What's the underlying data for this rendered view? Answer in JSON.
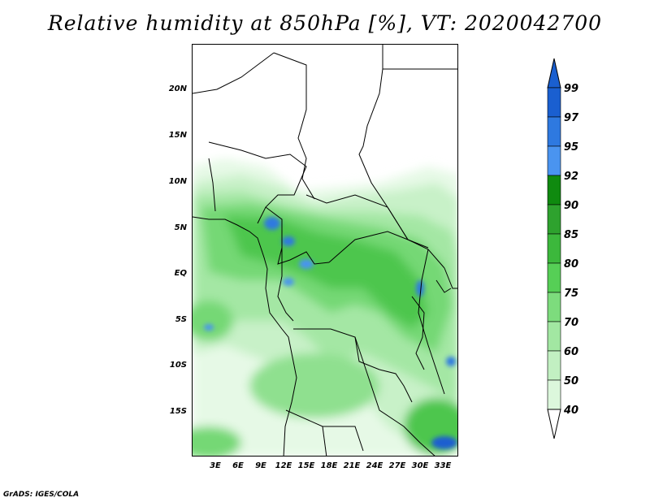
{
  "title": "Relative humidity at 850hPa [%], VT: 2020042700",
  "credit": "GrADS: IGES/COLA",
  "map": {
    "variable": "Relative humidity at 850hPa",
    "units": "%",
    "valid_time": "2020042700",
    "lat_labels": [
      "20N",
      "15N",
      "10N",
      "5N",
      "EQ",
      "5S",
      "10S",
      "15S"
    ],
    "lon_labels": [
      "3E",
      "6E",
      "9E",
      "12E",
      "15E",
      "18E",
      "21E",
      "24E",
      "27E",
      "30E",
      "33E"
    ]
  },
  "colorbar": {
    "levels": [
      "99",
      "97",
      "95",
      "92",
      "90",
      "85",
      "80",
      "75",
      "70",
      "60",
      "50",
      "40"
    ],
    "colors": [
      "#1a5fd0",
      "#2e79e0",
      "#4a94f0",
      "#0f8a0f",
      "#2ea22e",
      "#3cb83c",
      "#56cf56",
      "#7ddc7d",
      "#a2e7a2",
      "#c2f0c2",
      "#dcf7dc",
      "#f0fcf0"
    ],
    "arrow_top_color": "#1a5fd0",
    "arrow_bottom_color": "#ffffff"
  }
}
